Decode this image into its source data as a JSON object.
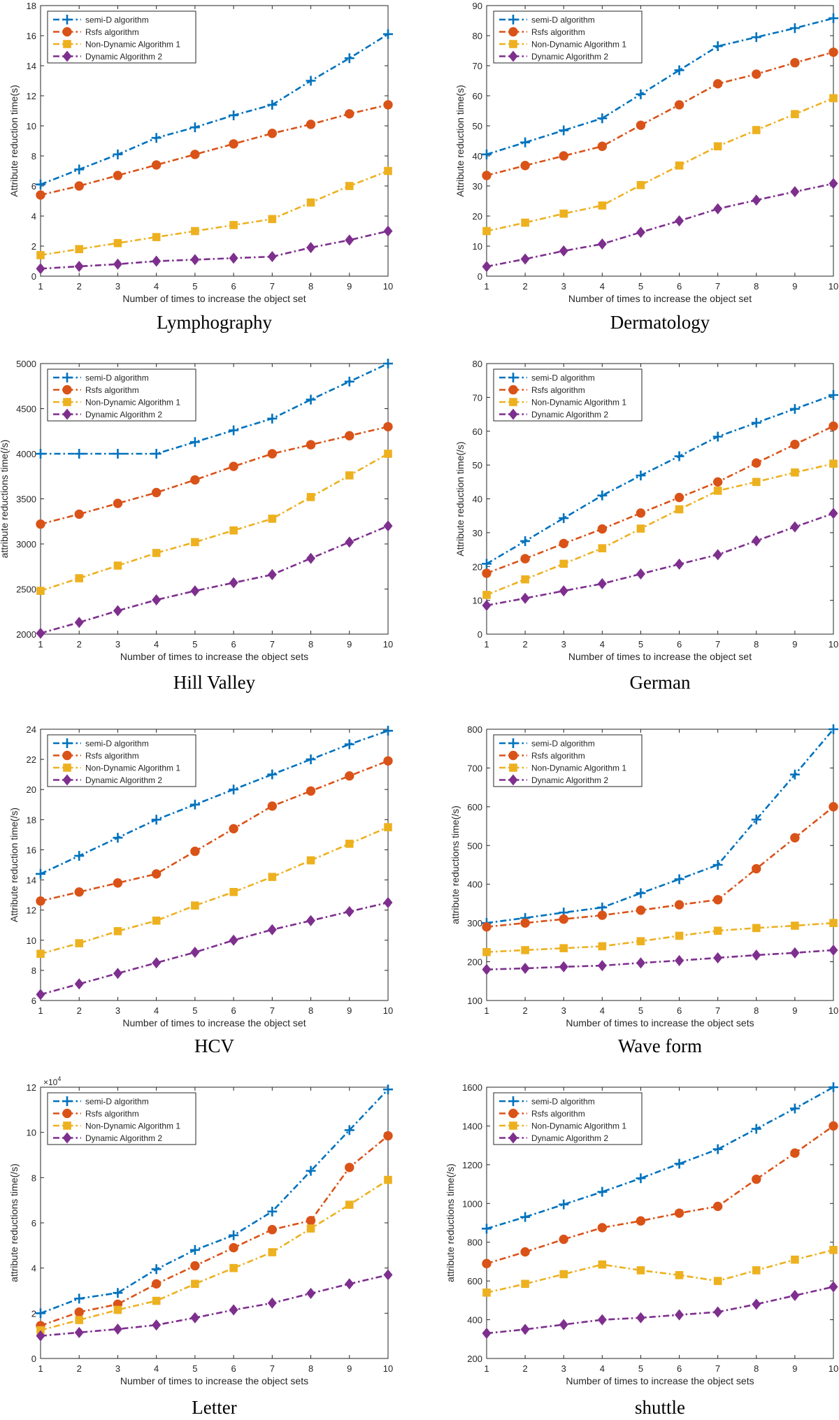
{
  "series_meta": [
    {
      "name": "semi-D algorithm",
      "color": "#0072BD",
      "marker": "plus"
    },
    {
      "name": "Rsfs algorithm",
      "color": "#D95319",
      "marker": "circle"
    },
    {
      "name": "Non-Dynamic Algorithm 1",
      "color": "#EDB120",
      "marker": "square"
    },
    {
      "name": "Dynamic Algorithm 2",
      "color": "#7E2F8E",
      "marker": "diamond"
    }
  ],
  "chart_data": [
    {
      "type": "line",
      "title": "Lymphography",
      "xlabel": "Number of times to increase the object set",
      "ylabel": "Attribute reduction time(s)",
      "x": [
        1,
        2,
        3,
        4,
        5,
        6,
        7,
        8,
        9,
        10
      ],
      "xlim": [
        1,
        10
      ],
      "ylim": [
        0,
        18
      ],
      "yticks": [
        0,
        2,
        4,
        6,
        8,
        10,
        12,
        14,
        16,
        18
      ],
      "ytick_labels": [
        "0",
        "2",
        "4",
        "6",
        "8",
        "10",
        "12",
        "14",
        "16",
        "18"
      ],
      "legend": "top-left",
      "series": [
        {
          "name": "semi-D algorithm",
          "values": [
            6.1,
            7.1,
            8.1,
            9.2,
            9.9,
            10.7,
            11.4,
            13.0,
            14.5,
            16.1
          ]
        },
        {
          "name": "Rsfs algorithm",
          "values": [
            5.4,
            6.0,
            6.7,
            7.4,
            8.1,
            8.8,
            9.5,
            10.1,
            10.8,
            11.4
          ]
        },
        {
          "name": "Non-Dynamic Algorithm 1",
          "values": [
            1.4,
            1.8,
            2.2,
            2.6,
            3.0,
            3.4,
            3.8,
            4.9,
            6.0,
            7.0
          ]
        },
        {
          "name": "Dynamic Algorithm 2",
          "values": [
            0.5,
            0.65,
            0.8,
            1.0,
            1.1,
            1.2,
            1.3,
            1.9,
            2.4,
            3.0
          ]
        }
      ]
    },
    {
      "type": "line",
      "title": "Dermatology",
      "xlabel": "Number of times to increase the object set",
      "ylabel": "Attribute reduction time(s)",
      "x": [
        1,
        2,
        3,
        4,
        5,
        6,
        7,
        8,
        9,
        10
      ],
      "xlim": [
        1,
        10
      ],
      "ylim": [
        0,
        90
      ],
      "yticks": [
        0,
        10,
        20,
        30,
        40,
        50,
        60,
        70,
        80,
        90
      ],
      "ytick_labels": [
        "0",
        "10",
        "20",
        "30",
        "40",
        "50",
        "60",
        "70",
        "80",
        "90"
      ],
      "legend": "top-left",
      "series": [
        {
          "name": "semi-D algorithm",
          "values": [
            40.5,
            44.5,
            48.5,
            52.5,
            60.5,
            68.5,
            76.5,
            79.5,
            82.5,
            85.8
          ]
        },
        {
          "name": "Rsfs algorithm",
          "values": [
            33.5,
            36.8,
            40.0,
            43.2,
            50.2,
            57.0,
            64.0,
            67.2,
            71.0,
            74.5
          ]
        },
        {
          "name": "Non-Dynamic Algorithm 1",
          "values": [
            15.0,
            17.8,
            20.8,
            23.5,
            30.3,
            36.8,
            43.2,
            48.6,
            53.9,
            59.2
          ]
        },
        {
          "name": "Dynamic Algorithm 2",
          "values": [
            3.2,
            5.7,
            8.4,
            10.7,
            14.6,
            18.4,
            22.4,
            25.3,
            28.1,
            30.8
          ]
        }
      ]
    },
    {
      "type": "line",
      "title": "Hill Valley",
      "xlabel": "Number of times to increase the  object sets",
      "ylabel": "attribute reductions time(/s)",
      "x": [
        1,
        2,
        3,
        4,
        5,
        6,
        7,
        8,
        9,
        10
      ],
      "xlim": [
        1,
        10
      ],
      "ylim": [
        2000,
        5000
      ],
      "yticks": [
        2000,
        2500,
        3000,
        3500,
        4000,
        4500,
        5000
      ],
      "ytick_labels": [
        "2000",
        "2500",
        "3000",
        "3500",
        "4000",
        "4500",
        "5000"
      ],
      "legend": "top-left",
      "series": [
        {
          "name": "semi-D algorithm",
          "values": [
            4000,
            4000,
            4000,
            4000,
            4130,
            4260,
            4390,
            4600,
            4800,
            5000
          ]
        },
        {
          "name": "Rsfs algorithm",
          "values": [
            3220,
            3330,
            3450,
            3570,
            3710,
            3860,
            4000,
            4100,
            4200,
            4300
          ]
        },
        {
          "name": "Non-Dynamic Algorithm 1",
          "values": [
            2480,
            2620,
            2760,
            2900,
            3020,
            3150,
            3280,
            3520,
            3760,
            4000
          ]
        },
        {
          "name": "Dynamic Algorithm 2",
          "values": [
            2010,
            2130,
            2260,
            2380,
            2480,
            2570,
            2660,
            2840,
            3020,
            3200
          ]
        }
      ]
    },
    {
      "type": "line",
      "title": "German",
      "xlabel": "Number of times to increase the object set",
      "ylabel": "Attribute reduction time(/s)",
      "x": [
        1,
        2,
        3,
        4,
        5,
        6,
        7,
        8,
        9,
        10
      ],
      "xlim": [
        1,
        10
      ],
      "ylim": [
        0,
        80
      ],
      "yticks": [
        0,
        10,
        20,
        30,
        40,
        50,
        60,
        70,
        80
      ],
      "ytick_labels": [
        "0",
        "10",
        "20",
        "30",
        "40",
        "50",
        "60",
        "70",
        "80"
      ],
      "legend": "top-left",
      "series": [
        {
          "name": "semi-D algorithm",
          "values": [
            20.8,
            27.5,
            34.3,
            41.0,
            46.9,
            52.6,
            58.4,
            62.5,
            66.6,
            70.7
          ]
        },
        {
          "name": "Rsfs algorithm",
          "values": [
            18.0,
            22.3,
            26.8,
            31.1,
            35.8,
            40.4,
            45.0,
            50.6,
            56.1,
            61.5
          ]
        },
        {
          "name": "Non-Dynamic Algorithm 1",
          "values": [
            11.6,
            16.2,
            20.8,
            25.4,
            31.2,
            36.9,
            42.4,
            45.0,
            47.8,
            50.4
          ]
        },
        {
          "name": "Dynamic Algorithm 2",
          "values": [
            8.5,
            10.6,
            12.8,
            14.9,
            17.8,
            20.7,
            23.5,
            27.6,
            31.7,
            35.7
          ]
        }
      ]
    },
    {
      "type": "line",
      "title": "HCV",
      "xlabel": "Number of times to increase the  object set",
      "ylabel": "Attribute reduction time(/s)",
      "x": [
        1,
        2,
        3,
        4,
        5,
        6,
        7,
        8,
        9,
        10
      ],
      "xlim": [
        1,
        10
      ],
      "ylim": [
        6,
        24
      ],
      "yticks": [
        6,
        8,
        10,
        12,
        14,
        16,
        18,
        20,
        22,
        24
      ],
      "ytick_labels": [
        "6",
        "8",
        "10",
        "12",
        "14",
        "16",
        "18",
        "20",
        "22",
        "24"
      ],
      "legend": "top-left",
      "series": [
        {
          "name": "semi-D algorithm",
          "values": [
            14.4,
            15.6,
            16.8,
            18.0,
            19.0,
            20.0,
            21.0,
            22.0,
            23.0,
            23.9
          ]
        },
        {
          "name": "Rsfs algorithm",
          "values": [
            12.6,
            13.2,
            13.8,
            14.4,
            15.9,
            17.4,
            18.9,
            19.9,
            20.9,
            21.9
          ]
        },
        {
          "name": "Non-Dynamic Algorithm 1",
          "values": [
            9.1,
            9.8,
            10.6,
            11.3,
            12.3,
            13.2,
            14.2,
            15.3,
            16.4,
            17.5
          ]
        },
        {
          "name": "Dynamic Algorithm 2",
          "values": [
            6.4,
            7.1,
            7.8,
            8.5,
            9.2,
            10.0,
            10.7,
            11.3,
            11.9,
            12.5
          ]
        }
      ]
    },
    {
      "type": "line",
      "title": "Wave form",
      "xlabel": "Number of times to increase the  object sets",
      "ylabel": "attribute reductions time(/s)",
      "x": [
        1,
        2,
        3,
        4,
        5,
        6,
        7,
        8,
        9,
        10
      ],
      "xlim": [
        1,
        10
      ],
      "ylim": [
        100,
        800
      ],
      "yticks": [
        100,
        200,
        300,
        400,
        500,
        600,
        700,
        800
      ],
      "ytick_labels": [
        "100",
        "200",
        "300",
        "400",
        "500",
        "600",
        "700",
        "800"
      ],
      "legend": "top-left",
      "series": [
        {
          "name": "semi-D algorithm",
          "values": [
            300,
            313,
            327,
            340,
            377,
            413,
            450,
            567,
            683,
            800
          ]
        },
        {
          "name": "Rsfs algorithm",
          "values": [
            290,
            300,
            310,
            320,
            333,
            347,
            360,
            440,
            520,
            600
          ]
        },
        {
          "name": "Non-Dynamic Algorithm 1",
          "values": [
            225,
            230,
            235,
            240,
            253,
            267,
            280,
            287,
            293,
            300
          ]
        },
        {
          "name": "Dynamic Algorithm 2",
          "values": [
            180,
            183,
            187,
            190,
            197,
            203,
            210,
            217,
            223,
            230
          ]
        }
      ]
    },
    {
      "type": "line",
      "title": "Letter",
      "xlabel": "Number of times to increase the  object sets",
      "ylabel": "attribute reductions time(/s)",
      "x": [
        1,
        2,
        3,
        4,
        5,
        6,
        7,
        8,
        9,
        10
      ],
      "xlim": [
        1,
        10
      ],
      "ylim": [
        0,
        120000
      ],
      "yticks": [
        0,
        20000,
        40000,
        60000,
        80000,
        100000,
        120000
      ],
      "ytick_labels": [
        "0",
        "2",
        "4",
        "6",
        "8",
        "10",
        "12"
      ],
      "y_multiplier": "×10",
      "y_exponent": "4",
      "legend": "top-left",
      "series": [
        {
          "name": "semi-D algorithm",
          "values": [
            20000,
            26500,
            29000,
            39500,
            48000,
            54500,
            65000,
            83000,
            101000,
            119000
          ]
        },
        {
          "name": "Rsfs algorithm",
          "values": [
            14500,
            20500,
            24000,
            33000,
            41000,
            49000,
            57000,
            61000,
            84500,
            98500
          ]
        },
        {
          "name": "Non-Dynamic Algorithm 1",
          "values": [
            12500,
            17000,
            21500,
            25500,
            33000,
            40000,
            47000,
            57500,
            68000,
            79000
          ]
        },
        {
          "name": "Dynamic Algorithm 2",
          "values": [
            10000,
            11500,
            13000,
            14800,
            18000,
            21500,
            24500,
            28800,
            33000,
            37000
          ]
        }
      ]
    },
    {
      "type": "line",
      "title": "shuttle",
      "xlabel": "Number of times to increase the  object sets",
      "ylabel": "attribute reductions time(/s)",
      "x": [
        1,
        2,
        3,
        4,
        5,
        6,
        7,
        8,
        9,
        10
      ],
      "xlim": [
        1,
        10
      ],
      "ylim": [
        200,
        1600
      ],
      "yticks": [
        200,
        400,
        600,
        800,
        1000,
        1200,
        1400,
        1600
      ],
      "ytick_labels": [
        "200",
        "400",
        "600",
        "800",
        "1000",
        "1200",
        "1400",
        "1600"
      ],
      "legend": "top-left",
      "series": [
        {
          "name": "semi-D algorithm",
          "values": [
            870,
            930,
            995,
            1060,
            1130,
            1205,
            1280,
            1385,
            1490,
            1600
          ]
        },
        {
          "name": "Rsfs algorithm",
          "values": [
            690,
            750,
            815,
            875,
            910,
            950,
            985,
            1125,
            1260,
            1400
          ]
        },
        {
          "name": "Non-Dynamic Algorithm 1",
          "values": [
            540,
            585,
            635,
            685,
            655,
            630,
            600,
            655,
            710,
            760
          ]
        },
        {
          "name": "Dynamic Algorithm 2",
          "values": [
            330,
            350,
            375,
            400,
            410,
            425,
            440,
            480,
            525,
            570
          ]
        }
      ]
    }
  ]
}
